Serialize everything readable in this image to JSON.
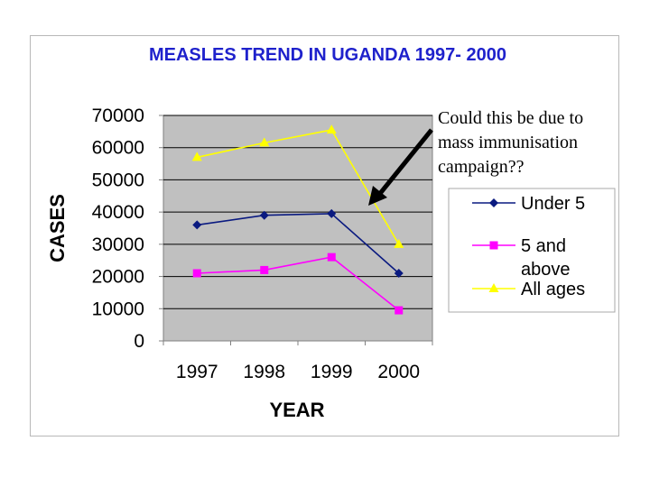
{
  "chart_data": {
    "type": "line",
    "title": "MEASLES TREND IN UGANDA 1997- 2000",
    "xlabel": "YEAR",
    "ylabel": "CASES",
    "categories": [
      "1997",
      "1998",
      "1999",
      "2000"
    ],
    "ylim": [
      0,
      70000
    ],
    "yticks": [
      0,
      10000,
      20000,
      30000,
      40000,
      50000,
      60000,
      70000
    ],
    "grid": true,
    "legend_position": "right",
    "series": [
      {
        "name": "Under 5",
        "values": [
          36000,
          39000,
          39500,
          21000
        ],
        "color": "#0a1a80",
        "marker": "diamond"
      },
      {
        "name": "5 and above",
        "values": [
          21000,
          22000,
          26000,
          9500
        ],
        "color": "#ff00ff",
        "marker": "square"
      },
      {
        "name": "All ages",
        "values": [
          57000,
          61500,
          65500,
          30000
        ],
        "color": "#ffff00",
        "marker": "triangle"
      }
    ],
    "annotation": "Could this be due to mass immunisation campaign??"
  },
  "colors": {
    "plot_background": "#c0c0c0",
    "gridline": "#000000",
    "title": "#1f22cc"
  }
}
